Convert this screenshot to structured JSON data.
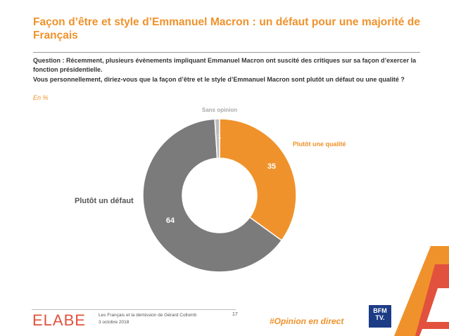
{
  "header": {
    "title": "Façon d’être et style d’Emmanuel Macron : un défaut pour une majorité de Français"
  },
  "question": {
    "line1": "Question : Récemment, plusieurs évènements impliquant Emmanuel Macron ont suscité des critiques sur sa façon d’exercer la fonction présidentielle.",
    "line2": "Vous personnellement, diriez-vous que la façon d’être et le style d’Emmanuel Macron sont plutôt un défaut ou une qualité ?",
    "unit": "En %"
  },
  "chart_data": {
    "type": "pie",
    "subtype": "donut",
    "categories": [
      "Plutôt une qualité",
      "Plutôt un défaut",
      "Sans opinion"
    ],
    "values": [
      35,
      64,
      1
    ],
    "colors": [
      "#f0922b",
      "#7b7b7b",
      "#bdbdbd"
    ],
    "label_colors": [
      "#f0922b",
      "#555555",
      "#a9a9a9"
    ],
    "start_angle_deg": 0,
    "direction": "clockwise"
  },
  "footer": {
    "logo": "ELABE",
    "line1": "Les Français et la démission de Gérard Collomb",
    "line2": "3 octobre 2018",
    "page": "17",
    "hashtag": "#Opinion en direct",
    "channel_logo_line1": "BFM",
    "channel_logo_line2": "TV."
  }
}
